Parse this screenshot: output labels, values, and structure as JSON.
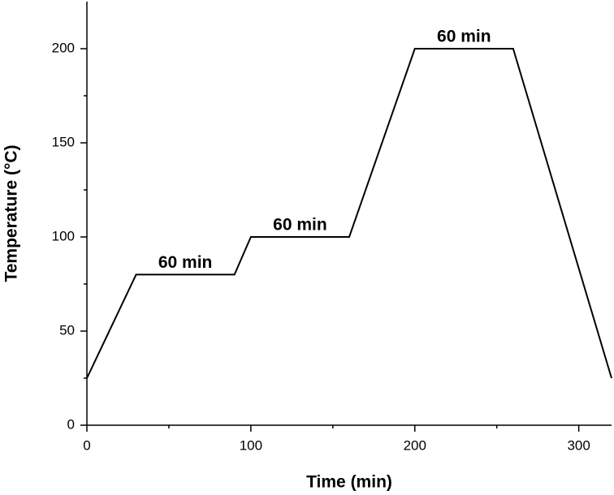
{
  "chart_data": {
    "type": "line",
    "x_label": "Time (min)",
    "y_label": "Temperature (°C)",
    "x": [
      0,
      30,
      90,
      100,
      160,
      200,
      260,
      320
    ],
    "series": [
      {
        "color": "#000000",
        "values": [
          25,
          80,
          80,
          100,
          100,
          200,
          200,
          25
        ]
      }
    ],
    "xlim": [
      0,
      320
    ],
    "xticks": [
      0,
      100,
      200,
      300
    ],
    "xminorticks": [
      50,
      150,
      250
    ],
    "ylim": [
      0,
      225
    ],
    "yticks": [
      0,
      50,
      100,
      150,
      200
    ],
    "yminorticks": [
      25,
      75,
      125,
      175
    ],
    "annotations": [
      {
        "text": "60 min",
        "x": 60,
        "y": 80
      },
      {
        "text": "60 min",
        "x": 130,
        "y": 100
      },
      {
        "text": "60 min",
        "x": 230,
        "y": 200
      }
    ]
  }
}
